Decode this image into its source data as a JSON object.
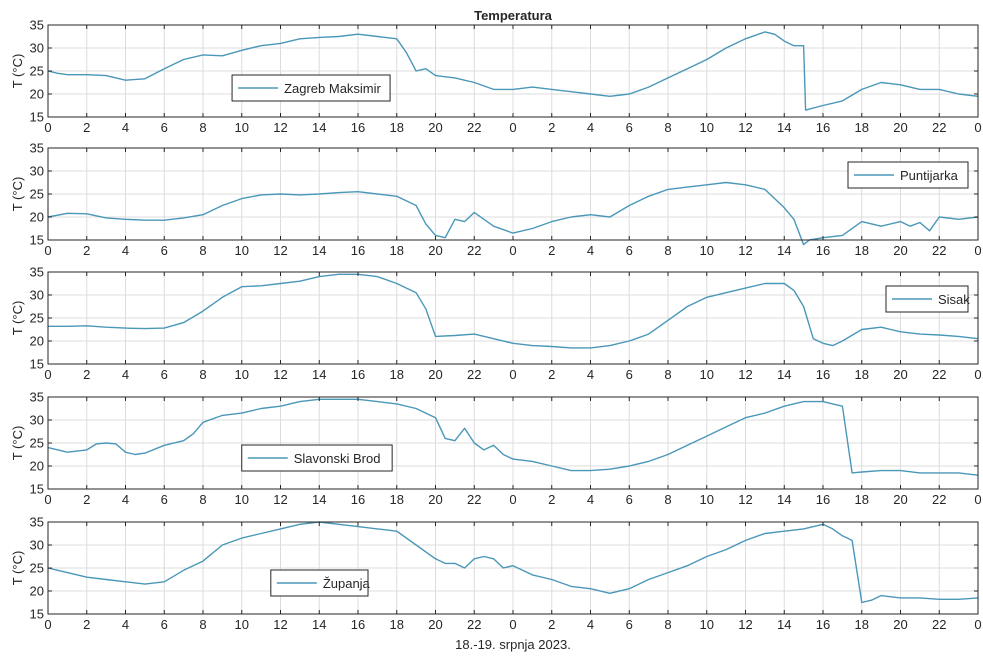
{
  "title": "Temperatura",
  "xlabel": "18.-19. srpnja 2023.",
  "colors": {
    "line": "#4a97b8",
    "grid": "#dcdcdc",
    "axis": "#262626"
  },
  "chart_data": [
    {
      "type": "line",
      "ylabel": "T (°C)",
      "ylim": [
        15,
        35
      ],
      "yticks": [
        15,
        20,
        25,
        30,
        35
      ],
      "xlim": [
        0,
        48
      ],
      "xticks": [
        0,
        2,
        4,
        6,
        8,
        10,
        12,
        14,
        16,
        18,
        20,
        22,
        24,
        26,
        28,
        30,
        32,
        34,
        36,
        38,
        40,
        42,
        44,
        46,
        48
      ],
      "xticklabels": [
        "0",
        "2",
        "4",
        "6",
        "8",
        "10",
        "12",
        "14",
        "16",
        "18",
        "20",
        "22",
        "0",
        "2",
        "4",
        "6",
        "8",
        "10",
        "12",
        "14",
        "16",
        "18",
        "20",
        "22",
        "0"
      ],
      "grid": true,
      "legend_position": "middle-left",
      "series": [
        {
          "name": "Zagreb Maksimir",
          "x": [
            0,
            0.5,
            1,
            2,
            3,
            4,
            5,
            6,
            7,
            8,
            9,
            10,
            11,
            12,
            13,
            14,
            15,
            16,
            17,
            18,
            18.5,
            19,
            19.5,
            20,
            21,
            22,
            23,
            24,
            25,
            26,
            27,
            28,
            29,
            30,
            31,
            32,
            33,
            34,
            35,
            36,
            37,
            37.5,
            38,
            38.5,
            39,
            39.1,
            40,
            41,
            42,
            43,
            44,
            45,
            46,
            47,
            48
          ],
          "values": [
            25,
            24.5,
            24.2,
            24.2,
            24,
            23,
            23.3,
            25.5,
            27.5,
            28.5,
            28.3,
            29.5,
            30.5,
            31,
            32,
            32.3,
            32.5,
            33,
            32.5,
            32,
            29,
            25,
            25.5,
            24,
            23.5,
            22.5,
            21,
            21,
            21.5,
            21,
            20.5,
            20,
            19.5,
            20,
            21.5,
            23.5,
            25.5,
            27.5,
            30,
            32,
            33.5,
            33,
            31.5,
            30.5,
            30.5,
            16.5,
            17.5,
            18.5,
            21,
            22.5,
            22,
            21,
            21,
            20,
            19.5
          ]
        }
      ]
    },
    {
      "type": "line",
      "ylabel": "T (°C)",
      "ylim": [
        15,
        35
      ],
      "yticks": [
        15,
        20,
        25,
        30,
        35
      ],
      "xlim": [
        0,
        48
      ],
      "xticks": [
        0,
        2,
        4,
        6,
        8,
        10,
        12,
        14,
        16,
        18,
        20,
        22,
        24,
        26,
        28,
        30,
        32,
        34,
        36,
        38,
        40,
        42,
        44,
        46,
        48
      ],
      "xticklabels": [
        "0",
        "2",
        "4",
        "6",
        "8",
        "10",
        "12",
        "14",
        "16",
        "18",
        "20",
        "22",
        "0",
        "2",
        "4",
        "6",
        "8",
        "10",
        "12",
        "14",
        "16",
        "18",
        "20",
        "22",
        "0"
      ],
      "grid": true,
      "legend_position": "top-right",
      "series": [
        {
          "name": "Puntijarka",
          "x": [
            0,
            1,
            2,
            3,
            4,
            5,
            6,
            7,
            8,
            9,
            10,
            11,
            12,
            13,
            14,
            15,
            16,
            17,
            18,
            19,
            19.5,
            20,
            20.5,
            21,
            21.5,
            22,
            22.5,
            23,
            24,
            25,
            26,
            27,
            28,
            29,
            30,
            31,
            32,
            33,
            34,
            35,
            36,
            37,
            38,
            38.5,
            39,
            39.3,
            40,
            41,
            42,
            43,
            44,
            44.5,
            45,
            45.5,
            46,
            47,
            48
          ],
          "values": [
            20,
            20.8,
            20.7,
            19.8,
            19.5,
            19.3,
            19.3,
            19.8,
            20.5,
            22.5,
            24,
            24.8,
            25,
            24.8,
            25,
            25.3,
            25.5,
            25,
            24.5,
            22.5,
            18.5,
            16,
            15.5,
            19.5,
            19,
            21,
            19.5,
            18,
            16.5,
            17.5,
            19,
            20,
            20.5,
            20,
            22.5,
            24.5,
            26,
            26.5,
            27,
            27.5,
            27,
            26,
            22,
            19.5,
            14,
            15,
            15.5,
            16,
            19,
            18,
            19,
            18,
            18.8,
            17,
            20,
            19.5,
            20
          ]
        }
      ]
    },
    {
      "type": "line",
      "ylabel": "T (°C)",
      "ylim": [
        15,
        35
      ],
      "yticks": [
        15,
        20,
        25,
        30,
        35
      ],
      "xlim": [
        0,
        48
      ],
      "xticks": [
        0,
        2,
        4,
        6,
        8,
        10,
        12,
        14,
        16,
        18,
        20,
        22,
        24,
        26,
        28,
        30,
        32,
        34,
        36,
        38,
        40,
        42,
        44,
        46,
        48
      ],
      "xticklabels": [
        "0",
        "2",
        "4",
        "6",
        "8",
        "10",
        "12",
        "14",
        "16",
        "18",
        "20",
        "22",
        "0",
        "2",
        "4",
        "6",
        "8",
        "10",
        "12",
        "14",
        "16",
        "18",
        "20",
        "22",
        "0"
      ],
      "grid": true,
      "legend_position": "top-right",
      "series": [
        {
          "name": "Sisak",
          "x": [
            0,
            1,
            2,
            3,
            4,
            5,
            6,
            7,
            8,
            9,
            10,
            11,
            12,
            13,
            14,
            15,
            16,
            17,
            18,
            19,
            19.5,
            20,
            21,
            22,
            23,
            24,
            25,
            26,
            27,
            28,
            29,
            30,
            31,
            32,
            33,
            34,
            35,
            36,
            37,
            38,
            38.5,
            39,
            39.5,
            40,
            40.5,
            41,
            42,
            43,
            44,
            45,
            46,
            47,
            48
          ],
          "values": [
            23.2,
            23.2,
            23.3,
            23,
            22.8,
            22.7,
            22.8,
            24,
            26.5,
            29.5,
            31.8,
            32,
            32.5,
            33,
            34,
            34.5,
            34.5,
            34,
            32.5,
            30.5,
            27,
            21,
            21.2,
            21.5,
            20.5,
            19.5,
            19,
            18.8,
            18.5,
            18.5,
            19,
            20,
            21.5,
            24.5,
            27.5,
            29.5,
            30.5,
            31.5,
            32.5,
            32.5,
            31,
            27.5,
            20.5,
            19.5,
            19,
            20,
            22.5,
            23,
            22,
            21.5,
            21.3,
            21,
            20.5
          ]
        }
      ]
    },
    {
      "type": "line",
      "ylabel": "T (°C)",
      "ylim": [
        15,
        35
      ],
      "yticks": [
        15,
        20,
        25,
        30,
        35
      ],
      "xlim": [
        0,
        48
      ],
      "xticks": [
        0,
        2,
        4,
        6,
        8,
        10,
        12,
        14,
        16,
        18,
        20,
        22,
        24,
        26,
        28,
        30,
        32,
        34,
        36,
        38,
        40,
        42,
        44,
        46,
        48
      ],
      "xticklabels": [
        "0",
        "2",
        "4",
        "6",
        "8",
        "10",
        "12",
        "14",
        "16",
        "18",
        "20",
        "22",
        "0",
        "2",
        "4",
        "6",
        "8",
        "10",
        "12",
        "14",
        "16",
        "18",
        "20",
        "22",
        "0"
      ],
      "grid": true,
      "legend_position": "bottom-left",
      "series": [
        {
          "name": "Slavonski Brod",
          "x": [
            0,
            1,
            2,
            2.5,
            3,
            3.5,
            4,
            4.5,
            5,
            6,
            7,
            7.5,
            8,
            9,
            10,
            11,
            12,
            13,
            14,
            15,
            16,
            17,
            18,
            19,
            20,
            20.5,
            21,
            21.5,
            22,
            22.5,
            23,
            23.5,
            24,
            25,
            26,
            27,
            28,
            29,
            30,
            31,
            32,
            33,
            34,
            35,
            36,
            37,
            38,
            39,
            40,
            40.5,
            41,
            41.5,
            42,
            43,
            44,
            45,
            46,
            47,
            48
          ],
          "values": [
            24,
            23,
            23.5,
            24.8,
            25,
            24.8,
            23,
            22.5,
            22.8,
            24.5,
            25.5,
            27,
            29.5,
            31,
            31.5,
            32.5,
            33,
            34,
            34.5,
            34.5,
            34.5,
            34,
            33.5,
            32.5,
            30.5,
            26,
            25.5,
            28.2,
            25,
            23.5,
            24.5,
            22.5,
            21.5,
            21,
            20,
            19,
            19,
            19.3,
            20,
            21,
            22.5,
            24.5,
            26.5,
            28.5,
            30.5,
            31.5,
            33,
            34,
            34,
            33.5,
            33,
            18.5,
            18.7,
            19,
            19,
            18.5,
            18.5,
            18.5,
            18
          ]
        }
      ]
    },
    {
      "type": "line",
      "ylabel": "T (°C)",
      "ylim": [
        15,
        35
      ],
      "yticks": [
        15,
        20,
        25,
        30,
        35
      ],
      "xlim": [
        0,
        48
      ],
      "xticks": [
        0,
        2,
        4,
        6,
        8,
        10,
        12,
        14,
        16,
        18,
        20,
        22,
        24,
        26,
        28,
        30,
        32,
        34,
        36,
        38,
        40,
        42,
        44,
        46,
        48
      ],
      "xticklabels": [
        "0",
        "2",
        "4",
        "6",
        "8",
        "10",
        "12",
        "14",
        "16",
        "18",
        "20",
        "22",
        "0",
        "2",
        "4",
        "6",
        "8",
        "10",
        "12",
        "14",
        "16",
        "18",
        "20",
        "22",
        "0"
      ],
      "grid": true,
      "legend_position": "bottom-left",
      "series": [
        {
          "name": "Županja",
          "x": [
            0,
            0.5,
            1,
            2,
            3,
            4,
            5,
            6,
            7,
            8,
            9,
            10,
            11,
            12,
            13,
            14,
            15,
            16,
            17,
            18,
            19,
            20,
            20.5,
            21,
            21.5,
            22,
            22.5,
            23,
            23.5,
            24,
            25,
            26,
            27,
            28,
            29,
            30,
            31,
            32,
            33,
            34,
            35,
            36,
            37,
            38,
            39,
            40,
            40.5,
            41,
            41.5,
            42,
            42.5,
            43,
            44,
            45,
            46,
            47,
            48
          ],
          "values": [
            25,
            24.5,
            24,
            23,
            22.5,
            22,
            21.5,
            22,
            24.5,
            26.5,
            30,
            31.5,
            32.5,
            33.5,
            34.5,
            35,
            34.5,
            34,
            33.5,
            33,
            30,
            27,
            26,
            26,
            25,
            27,
            27.5,
            27,
            25,
            25.5,
            23.5,
            22.5,
            21,
            20.5,
            19.5,
            20.5,
            22.5,
            24,
            25.5,
            27.5,
            29,
            31,
            32.5,
            33,
            33.5,
            34.5,
            33.5,
            32,
            31,
            17.5,
            18,
            19,
            18.5,
            18.5,
            18.2,
            18.2,
            18.5
          ]
        }
      ]
    }
  ]
}
